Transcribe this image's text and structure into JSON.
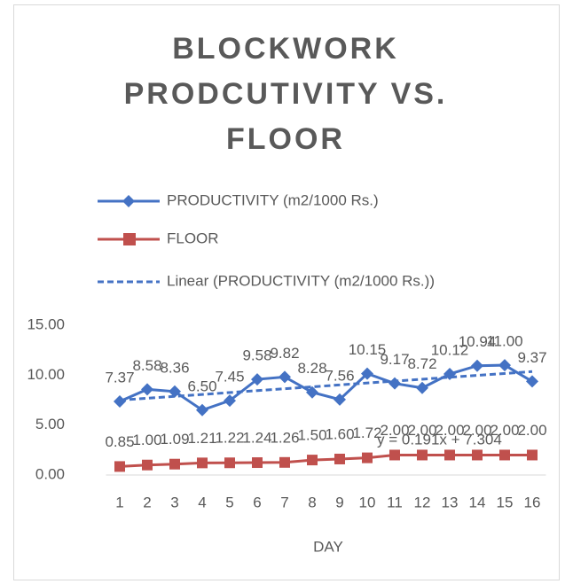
{
  "chart_data": {
    "type": "line",
    "title": "BLOCKWORK PRODCUTIVITY VS. FLOOR",
    "x_label": "DAY",
    "x": [
      1,
      2,
      3,
      4,
      5,
      6,
      7,
      8,
      9,
      10,
      11,
      12,
      13,
      14,
      15,
      16
    ],
    "xlim": [
      0.5,
      16.5
    ],
    "ylim": [
      0,
      15
    ],
    "yticks": [
      {
        "value": 0,
        "label": "0.00"
      },
      {
        "value": 5,
        "label": "5.00"
      },
      {
        "value": 10,
        "label": "10.00"
      },
      {
        "value": 15,
        "label": "15.00"
      }
    ],
    "grid": false,
    "series": [
      {
        "name": "PRODUCTIVITY (m2/1000 Rs.)",
        "color": "#4472c4",
        "marker": "diamond",
        "values": [
          7.37,
          8.58,
          8.36,
          6.5,
          7.45,
          9.58,
          9.82,
          8.28,
          7.56,
          10.15,
          9.17,
          8.72,
          10.12,
          10.94,
          11.0,
          9.37
        ],
        "value_labels": [
          "7.37",
          "8.58",
          "8.36",
          "6.50",
          "7.45",
          "9.58",
          "9.82",
          "8.28",
          "7.56",
          "10.15",
          "9.17",
          "8.72",
          "10.12",
          "10.94",
          "11.00",
          "9.37"
        ]
      },
      {
        "name": "FLOOR",
        "color": "#c0504d",
        "marker": "square",
        "values": [
          0.85,
          1.0,
          1.09,
          1.21,
          1.22,
          1.24,
          1.26,
          1.5,
          1.6,
          1.72,
          2.0,
          2.0,
          2.0,
          2.0,
          2.0,
          2.0
        ],
        "value_labels": [
          "0.85",
          "1.00",
          "1.09",
          "1.21",
          "1.22",
          "1.24",
          "1.26",
          "1.50",
          "1.60",
          "1.72",
          "2.00",
          "2.00",
          "2.00",
          "2.00",
          "2.00",
          "2.00"
        ]
      }
    ],
    "trendline": {
      "name": "Linear (PRODUCTIVITY (m2/1000 Rs.))",
      "color": "#4472c4",
      "equation": "y = 0.191x + 7.304",
      "slope": 0.191,
      "intercept": 7.304
    }
  }
}
